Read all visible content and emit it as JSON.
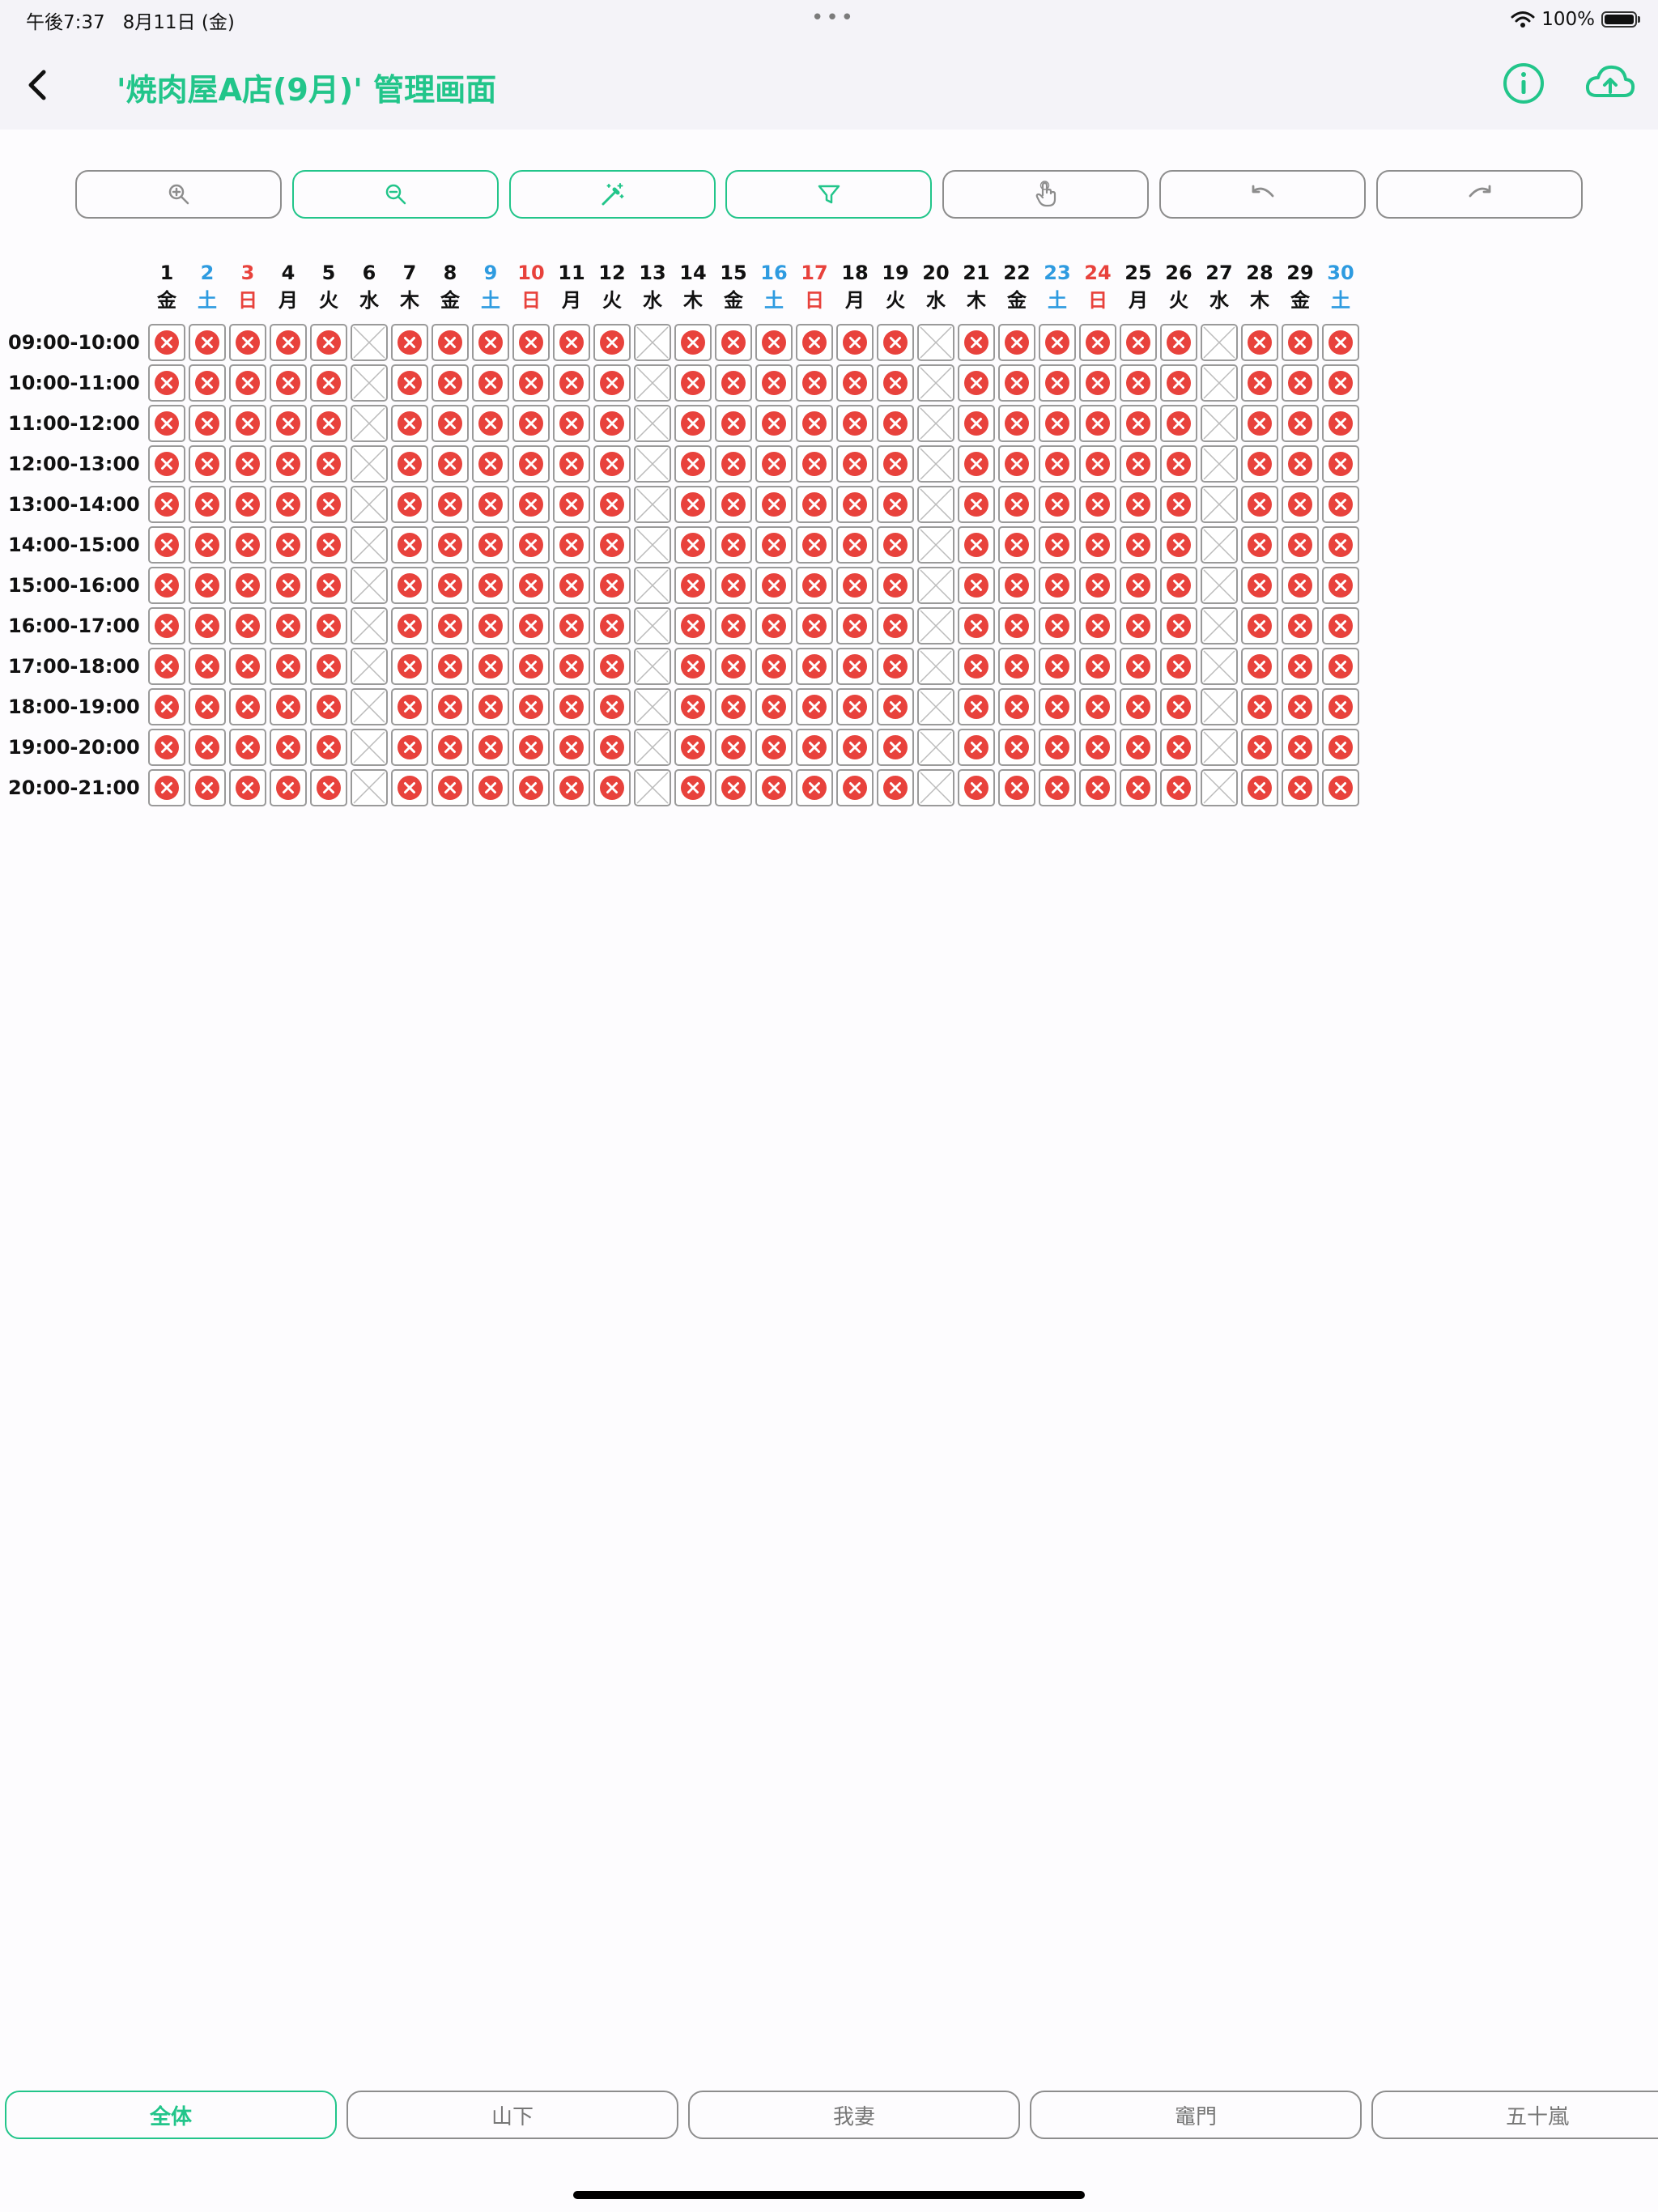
{
  "status_bar": {
    "time": "午後7:37",
    "date": "8月11日 (金)",
    "battery": "100%",
    "battery_level": 1.0,
    "wifi_icon": "wifi-icon"
  },
  "nav": {
    "title": "'焼肉屋A店(9月)' 管理画面",
    "back_icon": "chevron-left-icon",
    "info_icon": "info-circle-icon",
    "upload_icon": "cloud-upload-icon"
  },
  "toolbar": [
    {
      "name": "zoom-in-button",
      "icon": "zoom-in-icon",
      "active": false
    },
    {
      "name": "zoom-out-button",
      "icon": "zoom-out-icon",
      "active": true
    },
    {
      "name": "magic-wand-button",
      "icon": "magic-wand-icon",
      "active": true
    },
    {
      "name": "filter-button",
      "icon": "filter-icon",
      "active": true
    },
    {
      "name": "touch-mode-button",
      "icon": "hand-pointer-icon",
      "active": false
    },
    {
      "name": "undo-button",
      "icon": "undo-icon",
      "active": false
    },
    {
      "name": "redo-button",
      "icon": "redo-icon",
      "active": false
    }
  ],
  "schedule": {
    "days": [
      {
        "d": "1",
        "w": "金",
        "t": "weekday"
      },
      {
        "d": "2",
        "w": "土",
        "t": "sat"
      },
      {
        "d": "3",
        "w": "日",
        "t": "sun"
      },
      {
        "d": "4",
        "w": "月",
        "t": "weekday"
      },
      {
        "d": "5",
        "w": "火",
        "t": "weekday"
      },
      {
        "d": "6",
        "w": "水",
        "t": "weekday"
      },
      {
        "d": "7",
        "w": "木",
        "t": "weekday"
      },
      {
        "d": "8",
        "w": "金",
        "t": "weekday"
      },
      {
        "d": "9",
        "w": "土",
        "t": "sat"
      },
      {
        "d": "10",
        "w": "日",
        "t": "sun"
      },
      {
        "d": "11",
        "w": "月",
        "t": "weekday"
      },
      {
        "d": "12",
        "w": "火",
        "t": "weekday"
      },
      {
        "d": "13",
        "w": "水",
        "t": "weekday"
      },
      {
        "d": "14",
        "w": "木",
        "t": "weekday"
      },
      {
        "d": "15",
        "w": "金",
        "t": "weekday"
      },
      {
        "d": "16",
        "w": "土",
        "t": "sat"
      },
      {
        "d": "17",
        "w": "日",
        "t": "sun"
      },
      {
        "d": "18",
        "w": "月",
        "t": "weekday"
      },
      {
        "d": "19",
        "w": "火",
        "t": "weekday"
      },
      {
        "d": "20",
        "w": "水",
        "t": "weekday"
      },
      {
        "d": "21",
        "w": "木",
        "t": "weekday"
      },
      {
        "d": "22",
        "w": "金",
        "t": "weekday"
      },
      {
        "d": "23",
        "w": "土",
        "t": "sat"
      },
      {
        "d": "24",
        "w": "日",
        "t": "sun"
      },
      {
        "d": "25",
        "w": "月",
        "t": "weekday"
      },
      {
        "d": "26",
        "w": "火",
        "t": "weekday"
      },
      {
        "d": "27",
        "w": "水",
        "t": "weekday"
      },
      {
        "d": "28",
        "w": "木",
        "t": "weekday"
      },
      {
        "d": "29",
        "w": "金",
        "t": "weekday"
      },
      {
        "d": "30",
        "w": "土",
        "t": "sat"
      }
    ],
    "time_slots": [
      "09:00-10:00",
      "10:00-11:00",
      "11:00-12:00",
      "12:00-13:00",
      "13:00-14:00",
      "14:00-15:00",
      "15:00-16:00",
      "16:00-17:00",
      "17:00-18:00",
      "18:00-19:00",
      "19:00-20:00",
      "20:00-21:00"
    ],
    "closed_days": [
      "6",
      "13",
      "20",
      "27"
    ],
    "slot_state": "unavailable",
    "closed_state": "closed",
    "colors": {
      "unavailable": "#e8423c",
      "closed": "#bbbbbb",
      "accent": "#22c58a",
      "saturday": "#2e9be0",
      "sunday": "#e8423c"
    }
  },
  "tabs": [
    {
      "label": "全体",
      "active": true
    },
    {
      "label": "山下",
      "active": false
    },
    {
      "label": "我妻",
      "active": false
    },
    {
      "label": "竈門",
      "active": false
    },
    {
      "label": "五十嵐",
      "active": false
    }
  ]
}
